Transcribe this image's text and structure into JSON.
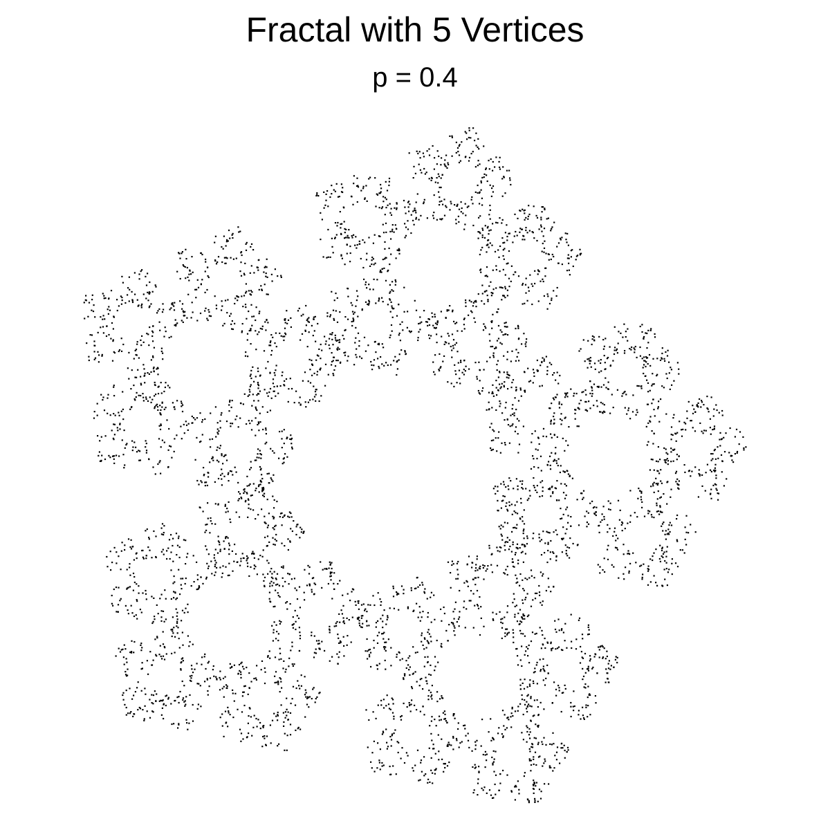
{
  "chart_data": {
    "type": "scatter",
    "title": "Fractal with 5 Vertices",
    "subtitle": "p = 0.4",
    "xlabel": "",
    "ylabel": "",
    "grid": false,
    "axes_visible": false,
    "n_vertices": 5,
    "p": 0.4,
    "n_points": 5000,
    "point_color": "#000000",
    "background_color": "#ffffff",
    "xlim": [
      -0.951,
      0.951
    ],
    "ylim": [
      -0.809,
      1.0
    ]
  }
}
